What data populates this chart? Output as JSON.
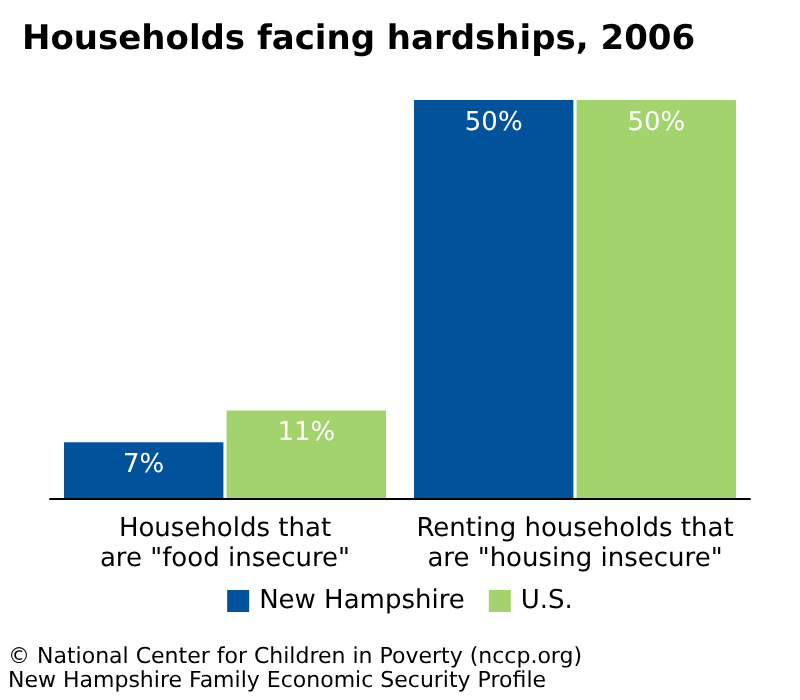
{
  "chart_data": {
    "type": "bar",
    "title": "Households facing hardships, 2006",
    "categories": [
      "Households that\nare \"food insecure\"",
      "Renting households that\nare \"housing insecure\""
    ],
    "series": [
      {
        "name": "New Hampshire",
        "color": "#00539b",
        "values": [
          7,
          50
        ],
        "value_labels": [
          "7%",
          "50%"
        ]
      },
      {
        "name": "U.S.",
        "color": "#a2d36c",
        "values": [
          11,
          50
        ],
        "value_labels": [
          "11%",
          "50%"
        ]
      }
    ],
    "legend": "bottom",
    "grid": false,
    "annotations": [
      "© National Center for Children in Poverty (nccp.org)",
      "New Hampshire Family Economic Security Profile"
    ]
  }
}
